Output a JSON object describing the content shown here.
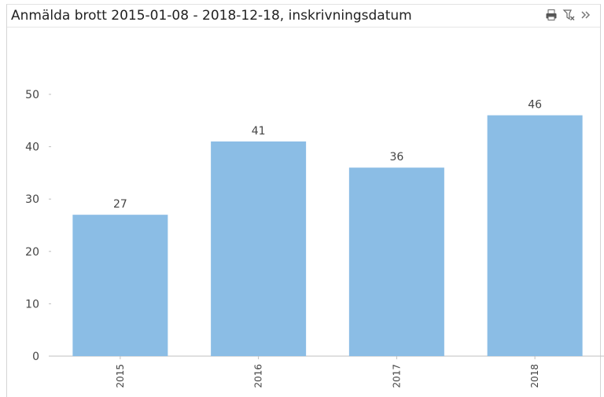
{
  "panel": {
    "title": "Anmälda brott 2015-01-08 - 2018-12-18, inskrivningsdatum",
    "toolbar": [
      {
        "name": "print-icon",
        "interactable": true
      },
      {
        "name": "clear-selection-icon",
        "interactable": true
      },
      {
        "name": "expand-more-icon",
        "interactable": true
      }
    ]
  },
  "colors": {
    "bar": "#8bbde5",
    "axis": "#bfbfbf",
    "text": "#444444"
  },
  "chart_data": {
    "type": "bar",
    "categories": [
      "2015",
      "2016",
      "2017",
      "2018"
    ],
    "values": [
      27,
      41,
      36,
      46
    ],
    "data_labels": [
      "27",
      "41",
      "36",
      "46"
    ],
    "yticks": [
      "0",
      "10",
      "20",
      "30",
      "40",
      "50"
    ],
    "ylim": [
      0,
      50
    ],
    "xlabel": "",
    "ylabel": "",
    "grid": false,
    "legend": "none"
  }
}
